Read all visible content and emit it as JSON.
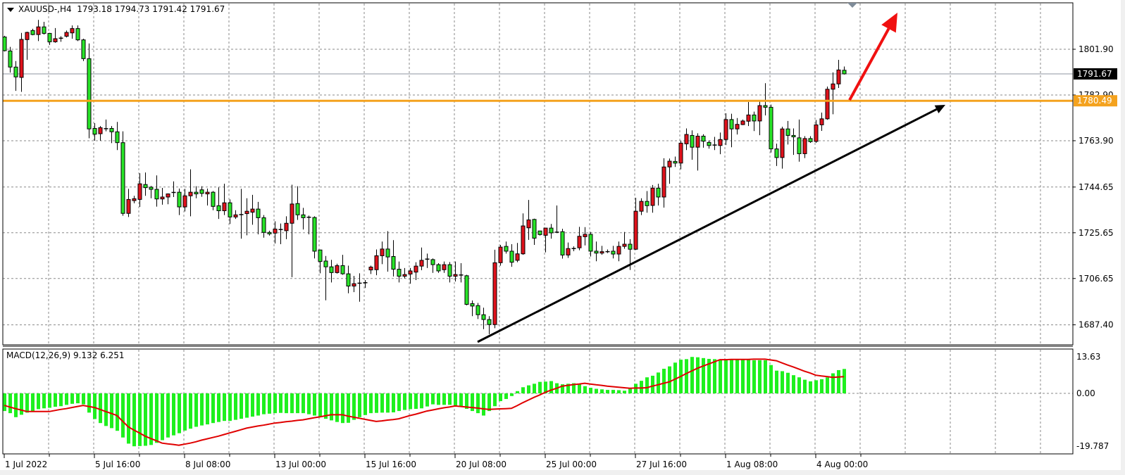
{
  "header": {
    "symbol": "XAUUSD-,H4",
    "open": "1793.18",
    "high": "1794.73",
    "low": "1791.42",
    "close": "1791.67"
  },
  "macd_label": {
    "name": "MACD(12,26,9)",
    "macd": "9.132",
    "signal": "6.251"
  },
  "colors": {
    "bull_candle": "#e0121c",
    "bear_candle": "#28e428",
    "histogram": "#1ef01e",
    "signal_line": "#e00000",
    "horizontal_level": "#f4a21e",
    "trendline": "#000000",
    "arrow": "#f01010",
    "current_price_tag": "#000000"
  },
  "chart_data": [
    {
      "type": "candlestick",
      "title": "XAUUSD-,H4",
      "timeframe": "H4",
      "x_tick_labels": [
        "1 Jul 2022",
        "5 Jul 16:00",
        "8 Jul 08:00",
        "13 Jul 00:00",
        "15 Jul 16:00",
        "20 Jul 08:00",
        "25 Jul 00:00",
        "27 Jul 16:00",
        "1 Aug 08:00",
        "4 Aug 00:00"
      ],
      "x_tick_every_bars": 16,
      "y_tick_labels": [
        "1801.90",
        "1782.90",
        "1763.90",
        "1744.65",
        "1725.65",
        "1706.65",
        "1687.40"
      ],
      "ylim": [
        1679.6,
        1821.2
      ],
      "grid": true,
      "bullish_color": "red",
      "bearish_color": "green",
      "current_price": "1791.67",
      "horizontal_level": {
        "price": "1780.49"
      },
      "trendline": {
        "from": {
          "bar": 84,
          "price": 1680.3
        },
        "to": {
          "bar": 167,
          "price": 1778.8
        },
        "arrow": true
      },
      "arrow": {
        "from": {
          "bar": 150,
          "price": 1780.8
        },
        "to": {
          "bar": 158.5,
          "price": 1817.1
        }
      },
      "ohlc": [
        [
          1807,
          1807.5,
          1801,
          1801.3
        ],
        [
          1801.2,
          1802.9,
          1792.2,
          1794.5
        ],
        [
          1794.5,
          1797,
          1784.6,
          1790.4
        ],
        [
          1790.2,
          1808.7,
          1784.2,
          1806
        ],
        [
          1805.9,
          1809.2,
          1797.5,
          1808.9
        ],
        [
          1809.7,
          1810.4,
          1807.7,
          1808
        ],
        [
          1808,
          1814.1,
          1805.3,
          1811.2
        ],
        [
          1811.2,
          1813.3,
          1808,
          1808.5
        ],
        [
          1808.5,
          1808.7,
          1803.7,
          1805
        ],
        [
          1805,
          1810.7,
          1804.6,
          1806.3
        ],
        [
          1806.5,
          1807.3,
          1805,
          1806.5
        ],
        [
          1807.3,
          1809.7,
          1806.8,
          1808.9
        ],
        [
          1808.7,
          1811.8,
          1806.3,
          1810.5
        ],
        [
          1810.5,
          1811.8,
          1805.3,
          1805.8
        ],
        [
          1805.8,
          1806.3,
          1797,
          1798
        ],
        [
          1798,
          1804.3,
          1764.9,
          1768.8
        ],
        [
          1769,
          1771.2,
          1763.9,
          1766.6
        ],
        [
          1766.8,
          1770,
          1763.9,
          1769.3
        ],
        [
          1768.9,
          1772.7,
          1767.8,
          1768.6
        ],
        [
          1769,
          1770,
          1762.9,
          1767.6
        ],
        [
          1767.6,
          1771.7,
          1760,
          1763.1
        ],
        [
          1763.1,
          1767.8,
          1732.7,
          1733.7
        ],
        [
          1733.7,
          1743.9,
          1732.2,
          1739.5
        ],
        [
          1739,
          1741,
          1737.9,
          1739.8
        ],
        [
          1739.5,
          1750.4,
          1736.4,
          1746
        ],
        [
          1745.7,
          1750.7,
          1741,
          1744.4
        ],
        [
          1744.6,
          1745.1,
          1740,
          1743.7
        ],
        [
          1743.7,
          1749.5,
          1736.5,
          1739.7
        ],
        [
          1739.7,
          1744.3,
          1737.3,
          1740.5
        ],
        [
          1740.5,
          1742,
          1737.5,
          1741.8
        ],
        [
          1742.4,
          1747,
          1740.5,
          1742.4
        ],
        [
          1742.5,
          1744,
          1733,
          1736.4
        ],
        [
          1736.4,
          1743.9,
          1734.5,
          1741
        ],
        [
          1741,
          1752,
          1732.5,
          1742.5
        ],
        [
          1742.5,
          1745,
          1740,
          1741.8
        ],
        [
          1743.5,
          1745,
          1740.6,
          1742
        ],
        [
          1741.8,
          1744,
          1737,
          1742.5
        ],
        [
          1742.5,
          1743,
          1735,
          1736.6
        ],
        [
          1736.9,
          1744.5,
          1731.4,
          1734.8
        ],
        [
          1734.8,
          1746,
          1733,
          1738.1
        ],
        [
          1738.1,
          1739.5,
          1729.3,
          1732.2
        ],
        [
          1732.2,
          1735,
          1731.4,
          1733.1
        ],
        [
          1733.2,
          1743.9,
          1723.2,
          1733.2
        ],
        [
          1733.6,
          1740,
          1724.6,
          1734.6
        ],
        [
          1734.2,
          1741.4,
          1729,
          1735.5
        ],
        [
          1735.5,
          1738.5,
          1725,
          1731.9
        ],
        [
          1731.9,
          1733,
          1723.6,
          1725.8
        ],
        [
          1725.8,
          1726.5,
          1724.5,
          1725.2
        ],
        [
          1725.5,
          1730.4,
          1721.2,
          1727.2
        ],
        [
          1727,
          1729.5,
          1720.9,
          1727
        ],
        [
          1726.5,
          1732.5,
          1723,
          1729.6
        ],
        [
          1729.6,
          1745.6,
          1707.2,
          1737.6
        ],
        [
          1737.8,
          1745,
          1731,
          1733.1
        ],
        [
          1733.1,
          1736,
          1727,
          1731.9
        ],
        [
          1732.1,
          1732.8,
          1725,
          1732.1
        ],
        [
          1732,
          1732.5,
          1715,
          1718
        ],
        [
          1718.5,
          1718.6,
          1708.8,
          1713.7
        ],
        [
          1713.9,
          1716,
          1697.6,
          1711.5
        ],
        [
          1711.5,
          1714.4,
          1705,
          1709.1
        ],
        [
          1709.1,
          1712.8,
          1708.7,
          1712
        ],
        [
          1712,
          1716.5,
          1708.2,
          1708.6
        ],
        [
          1708.6,
          1712,
          1700.5,
          1703.5
        ],
        [
          1703.5,
          1707.7,
          1701,
          1704.5
        ],
        [
          1704.7,
          1708.8,
          1697,
          1704.7
        ],
        [
          1704.9,
          1706,
          1702.7,
          1704.9
        ],
        [
          1710.2,
          1712,
          1708.5,
          1711.4
        ],
        [
          1710.3,
          1718.7,
          1708,
          1716.1
        ],
        [
          1716.1,
          1722,
          1712.6,
          1718.9
        ],
        [
          1718.9,
          1726.3,
          1709.5,
          1715.6
        ],
        [
          1715.8,
          1722.6,
          1707.5,
          1710.5
        ],
        [
          1710.5,
          1713.7,
          1705,
          1707.6
        ],
        [
          1707.6,
          1711,
          1706.7,
          1708.3
        ],
        [
          1708.5,
          1711,
          1704.5,
          1709.8
        ],
        [
          1709.3,
          1713.4,
          1706,
          1711.8
        ],
        [
          1711.8,
          1719.5,
          1710.1,
          1714.2
        ],
        [
          1714.7,
          1717,
          1711,
          1714.7
        ],
        [
          1714.5,
          1715,
          1709,
          1712.4
        ],
        [
          1712.4,
          1713,
          1709,
          1709.8
        ],
        [
          1710.3,
          1713.7,
          1709,
          1712.4
        ],
        [
          1712.4,
          1713.5,
          1705,
          1707.6
        ],
        [
          1707.6,
          1713.7,
          1705.4,
          1708.3
        ],
        [
          1708.1,
          1713,
          1705,
          1708.1
        ],
        [
          1707.8,
          1708.2,
          1695.5,
          1695.9
        ],
        [
          1696.2,
          1697.5,
          1691,
          1695.2
        ],
        [
          1695.4,
          1696.5,
          1689.8,
          1691.6
        ],
        [
          1691.6,
          1694.5,
          1685.6,
          1689.6
        ],
        [
          1689.6,
          1691,
          1683.5,
          1687.5
        ],
        [
          1687.5,
          1718.6,
          1686,
          1713.2
        ],
        [
          1713.2,
          1720.6,
          1712,
          1719.7
        ],
        [
          1720,
          1722,
          1717,
          1718
        ],
        [
          1718,
          1720.9,
          1711.5,
          1713.4
        ],
        [
          1714.2,
          1721.4,
          1713.4,
          1716.9
        ],
        [
          1716.9,
          1733.7,
          1716.5,
          1728.5
        ],
        [
          1727.7,
          1739.3,
          1722.7,
          1731
        ],
        [
          1731.2,
          1731.5,
          1720.6,
          1723.4
        ],
        [
          1726.4,
          1726.4,
          1724.5,
          1724.9
        ],
        [
          1724.6,
          1727.6,
          1717.5,
          1727.6
        ],
        [
          1727.6,
          1729.3,
          1723.2,
          1725.6
        ],
        [
          1725.9,
          1737,
          1725.5,
          1725.9
        ],
        [
          1726.1,
          1727.3,
          1714.9,
          1716.4
        ],
        [
          1716.4,
          1721.6,
          1715.2,
          1719.1
        ],
        [
          1719.1,
          1720,
          1718,
          1719.1
        ],
        [
          1719.4,
          1728.1,
          1718.4,
          1724.2
        ],
        [
          1724,
          1728,
          1720.4,
          1725
        ],
        [
          1725,
          1726,
          1715.8,
          1718
        ],
        [
          1718,
          1722,
          1713.8,
          1717.2
        ],
        [
          1717.2,
          1720.2,
          1716.5,
          1717.8
        ],
        [
          1717.8,
          1718.7,
          1717.2,
          1717.8
        ],
        [
          1718,
          1720.2,
          1715,
          1716.8
        ],
        [
          1716.8,
          1722,
          1713.8,
          1720
        ],
        [
          1720,
          1726,
          1719,
          1720.9
        ],
        [
          1720.9,
          1723,
          1710.2,
          1718.8
        ],
        [
          1718.8,
          1740.2,
          1718.5,
          1734.6
        ],
        [
          1734.6,
          1740,
          1733,
          1738.7
        ],
        [
          1738.7,
          1743,
          1734,
          1736.9
        ],
        [
          1737,
          1745.5,
          1734,
          1744.2
        ],
        [
          1744.2,
          1746,
          1737,
          1740.5
        ],
        [
          1740.5,
          1756.6,
          1736.1,
          1753
        ],
        [
          1753,
          1756.5,
          1746,
          1755.4
        ],
        [
          1755.3,
          1757.3,
          1753,
          1754.6
        ],
        [
          1754.6,
          1763.9,
          1752,
          1762.9
        ],
        [
          1762.6,
          1769,
          1760,
          1766.5
        ],
        [
          1766.1,
          1768.2,
          1756,
          1761.2
        ],
        [
          1761.2,
          1767,
          1751.5,
          1765.8
        ],
        [
          1765.8,
          1766.6,
          1761,
          1763.7
        ],
        [
          1763.2,
          1764,
          1760.6,
          1761.9
        ],
        [
          1762.1,
          1765.5,
          1760,
          1762.1
        ],
        [
          1761.9,
          1767.3,
          1758.3,
          1764.4
        ],
        [
          1764.4,
          1775.3,
          1762.1,
          1772.7
        ],
        [
          1772.7,
          1775.1,
          1761.2,
          1768.8
        ],
        [
          1768.8,
          1773.3,
          1766.5,
          1770.7
        ],
        [
          1770.6,
          1772.7,
          1770.4,
          1772.1
        ],
        [
          1772,
          1780,
          1770,
          1774.6
        ],
        [
          1774.6,
          1776,
          1767.9,
          1772.1
        ],
        [
          1772.1,
          1780.3,
          1766.2,
          1778.5
        ],
        [
          1778.5,
          1787.8,
          1774.4,
          1777.8
        ],
        [
          1777.8,
          1778.9,
          1759,
          1760.5
        ],
        [
          1760.5,
          1762.7,
          1753.4,
          1756.9
        ],
        [
          1756.9,
          1769.7,
          1752.3,
          1768.8
        ],
        [
          1768.8,
          1772.1,
          1762.3,
          1766.1
        ],
        [
          1766.1,
          1769,
          1758,
          1765.5
        ],
        [
          1765.1,
          1772.7,
          1755.2,
          1758.5
        ],
        [
          1758.5,
          1765.8,
          1756.7,
          1764.8
        ],
        [
          1764.8,
          1765.8,
          1763,
          1763.5
        ],
        [
          1763.6,
          1772.5,
          1763,
          1770.5
        ],
        [
          1770.5,
          1775.6,
          1768,
          1773
        ],
        [
          1773,
          1786.4,
          1772.6,
          1785.3
        ],
        [
          1785.3,
          1792.3,
          1774.9,
          1787.5
        ],
        [
          1787.5,
          1797.5,
          1785.8,
          1793.3
        ],
        [
          1793.18,
          1794.73,
          1791.42,
          1791.67
        ]
      ]
    },
    {
      "type": "bar+line",
      "title": "MACD(12,26,9)",
      "y_tick_labels": [
        "13.63",
        "0.00",
        "-19.787"
      ],
      "ylim": [
        -22,
        16.8
      ],
      "grid": true,
      "histogram": [
        -6.6,
        -7.4,
        -8.9,
        -8.0,
        -7.2,
        -6.6,
        -5.9,
        -5.6,
        -5.4,
        -5.0,
        -4.8,
        -4.3,
        -3.9,
        -3.7,
        -4.1,
        -7.2,
        -9.6,
        -11.1,
        -12.2,
        -13.0,
        -14.0,
        -16.5,
        -18.8,
        -19.79,
        -19.7,
        -19.6,
        -19.3,
        -18.5,
        -17.5,
        -16.5,
        -15.7,
        -14.9,
        -13.9,
        -13.2,
        -12.5,
        -12.0,
        -11.6,
        -11.1,
        -10.7,
        -10.3,
        -10.3,
        -9.9,
        -9.5,
        -9.1,
        -8.7,
        -8.3,
        -7.8,
        -7.6,
        -7.4,
        -7.3,
        -7.4,
        -7.4,
        -7.4,
        -7.4,
        -7.8,
        -8.3,
        -8.9,
        -9.5,
        -10.1,
        -10.7,
        -11.1,
        -11.0,
        -9.9,
        -8.9,
        -8.1,
        -7.4,
        -7.3,
        -7.2,
        -7.2,
        -7.1,
        -6.6,
        -6.2,
        -5.9,
        -5.8,
        -5.6,
        -4.9,
        -4.1,
        -4.3,
        -4.3,
        -4.3,
        -4.5,
        -5.0,
        -5.8,
        -6.6,
        -7.4,
        -8.3,
        -6.6,
        -4.8,
        -2.9,
        -2.1,
        -1.0,
        0.85,
        2.3,
        3.0,
        3.6,
        4.3,
        4.4,
        4.6,
        3.8,
        3.4,
        3.6,
        3.8,
        3.4,
        2.7,
        2.1,
        1.7,
        1.5,
        1.3,
        1.3,
        1.2,
        1.0,
        1.7,
        3.6,
        4.7,
        6.0,
        6.6,
        7.8,
        9.2,
        10.1,
        11.5,
        12.6,
        12.8,
        13.63,
        13.5,
        13.2,
        12.9,
        12.8,
        12.6,
        12.6,
        12.6,
        12.6,
        12.5,
        12.5,
        12.4,
        12.4,
        12.4,
        10.6,
        8.5,
        8.3,
        7.7,
        6.8,
        6.0,
        5.1,
        4.5,
        4.9,
        5.3,
        6.0,
        7.5,
        8.7,
        9.13
      ],
      "signal": [
        -4.5,
        -5.1,
        -5.7,
        -6.2,
        -6.8,
        -6.8,
        -6.8,
        -6.8,
        -6.8,
        -6.4,
        -6.0,
        -5.7,
        -5.3,
        -4.9,
        -4.5,
        -4.9,
        -5.3,
        -6.0,
        -6.8,
        -7.5,
        -8.3,
        -10.4,
        -12.5,
        -13.7,
        -14.8,
        -16.0,
        -16.9,
        -17.7,
        -18.6,
        -18.9,
        -19.1,
        -19.4,
        -19.0,
        -18.6,
        -18.1,
        -17.5,
        -17.0,
        -16.5,
        -16.0,
        -15.4,
        -14.8,
        -14.2,
        -13.6,
        -13.0,
        -12.6,
        -12.2,
        -11.9,
        -11.5,
        -11.1,
        -10.9,
        -10.6,
        -10.4,
        -10.1,
        -9.9,
        -9.5,
        -9.1,
        -8.8,
        -8.4,
        -8.0,
        -8.0,
        -8.0,
        -8.5,
        -8.9,
        -9.3,
        -9.7,
        -10.1,
        -10.5,
        -10.3,
        -10.0,
        -9.8,
        -9.5,
        -8.9,
        -8.3,
        -7.8,
        -7.2,
        -6.6,
        -6.2,
        -5.8,
        -5.4,
        -5.1,
        -4.7,
        -4.9,
        -5.1,
        -5.3,
        -5.5,
        -5.8,
        -6.0,
        -5.9,
        -5.8,
        -5.7,
        -5.6,
        -4.6,
        -3.5,
        -2.5,
        -1.5,
        -0.6,
        0.4,
        1.2,
        1.9,
        2.7,
        3.0,
        3.3,
        3.5,
        3.8,
        3.5,
        3.2,
        3.0,
        2.7,
        2.5,
        2.3,
        2.1,
        1.9,
        2.0,
        2.0,
        2.1,
        2.7,
        3.2,
        3.8,
        4.3,
        5.3,
        6.3,
        7.4,
        8.4,
        9.4,
        10.2,
        11.0,
        11.8,
        12.6,
        12.6,
        12.7,
        12.7,
        12.7,
        12.7,
        12.8,
        12.8,
        12.8,
        12.5,
        12.2,
        11.4,
        10.6,
        9.9,
        9.1,
        8.3,
        7.6,
        6.8,
        6.5,
        6.3,
        6.0,
        6.1,
        6.251
      ]
    }
  ]
}
